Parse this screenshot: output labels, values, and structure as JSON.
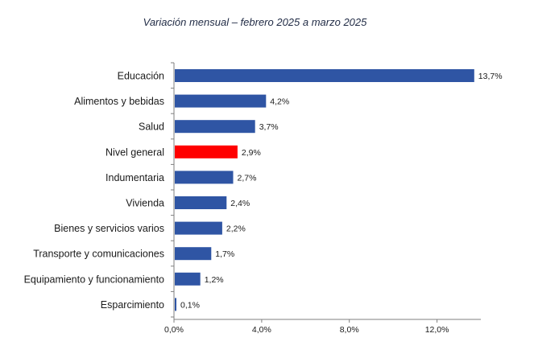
{
  "chart_data": {
    "type": "bar",
    "orientation": "horizontal",
    "title": "Variación mensual – febrero 2025 a marzo 2025",
    "xlabel": "",
    "ylabel": "",
    "categories": [
      "Educación",
      "Alimentos y bebidas",
      "Salud",
      "Nivel general",
      "Indumentaria",
      "Vivienda",
      "Bienes y servicios varios",
      "Transporte y comunicaciones",
      "Equipamiento y funcionamiento",
      "Esparcimiento"
    ],
    "values": [
      13.7,
      4.2,
      3.7,
      2.9,
      2.7,
      2.4,
      2.2,
      1.7,
      1.2,
      0.1
    ],
    "value_labels": [
      "13,7%",
      "4,2%",
      "3,7%",
      "2,9%",
      "2,7%",
      "2,4%",
      "2,2%",
      "1,7%",
      "1,2%",
      "0,1%"
    ],
    "highlight_category": "Nivel general",
    "xlim": [
      0,
      14
    ],
    "xticks": [
      0,
      4,
      8,
      12
    ],
    "xtick_labels": [
      "0,0%",
      "4,0%",
      "8,0%",
      "12,0%"
    ],
    "grid": false,
    "colors": {
      "bar": "#2f55a4",
      "highlight": "#ff0000",
      "axis": "#7f7f7f",
      "text": "#1a1a1a"
    }
  }
}
